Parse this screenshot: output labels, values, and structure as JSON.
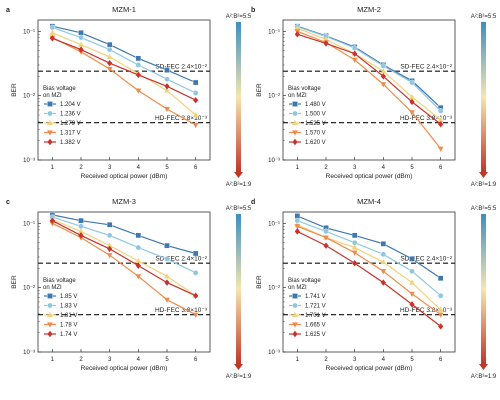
{
  "colorbar": {
    "top_label": "A²:B²=5:5",
    "bottom_label": "A²:B²=1:9",
    "top_color": "#3b8fc0",
    "bottom_color": "#c0372a"
  },
  "legend_title_line1": "Bias voltage",
  "legend_title_line2": "on MZI",
  "series_colors": [
    "#3f78b0",
    "#8fc7e0",
    "#f3d27c",
    "#ef8c4a",
    "#c8332c"
  ],
  "chart_data": [
    {
      "type": "line",
      "panel_label": "a",
      "title": "MZM-1",
      "xlabel": "Received optical power (dBm)",
      "ylabel": "BER",
      "x": [
        1,
        2,
        3,
        4,
        5,
        6
      ],
      "xlim": [
        0.5,
        6.5
      ],
      "yscale": "log",
      "ylim": [
        0.001,
        0.15
      ],
      "ytick_labels": [
        "10⁻¹",
        "10⁻²",
        "10⁻³"
      ],
      "thresholds": [
        {
          "label": "SD-FEC 2.4×10⁻²",
          "value": 0.024
        },
        {
          "label": "HD-FEC 3.8×10⁻³",
          "value": 0.0038
        }
      ],
      "legend_placement": "left",
      "series": [
        {
          "name": "1.204 V",
          "values": [
            0.12,
            0.095,
            0.062,
            0.038,
            0.025,
            0.016
          ]
        },
        {
          "name": "1.236 V",
          "values": [
            0.115,
            0.08,
            0.052,
            0.03,
            0.018,
            0.011
          ]
        },
        {
          "name": "1.279 V",
          "values": [
            0.095,
            0.062,
            0.04,
            0.022,
            0.012,
            0.005
          ]
        },
        {
          "name": "1.317 V",
          "values": [
            0.08,
            0.048,
            0.026,
            0.012,
            0.0062,
            0.0035
          ]
        },
        {
          "name": "1.382 V",
          "values": [
            0.078,
            0.052,
            0.032,
            0.021,
            0.014,
            0.0085
          ]
        }
      ]
    },
    {
      "type": "line",
      "panel_label": "b",
      "title": "MZM-2",
      "xlabel": "Received optical power (dBm)",
      "ylabel": "BER",
      "x": [
        1,
        2,
        3,
        4,
        5,
        6
      ],
      "xlim": [
        0.5,
        6.5
      ],
      "yscale": "log",
      "ylim": [
        0.001,
        0.15
      ],
      "ytick_labels": [
        "10⁻¹",
        "10⁻²",
        "10⁻³"
      ],
      "thresholds": [
        {
          "label": "SD-FEC 2.4×10⁻²",
          "value": 0.024
        },
        {
          "label": "HD-FEC 3.8×10⁻³",
          "value": 0.0038
        }
      ],
      "legend_placement": "left",
      "series": [
        {
          "name": "1.480 V",
          "values": [
            0.12,
            0.085,
            0.057,
            0.03,
            0.017,
            0.0065
          ]
        },
        {
          "name": "1.500 V",
          "values": [
            0.118,
            0.083,
            0.055,
            0.029,
            0.016,
            0.0058
          ]
        },
        {
          "name": "1.525 V",
          "values": [
            0.112,
            0.075,
            0.045,
            0.024,
            0.0095,
            0.0042
          ]
        },
        {
          "name": "1.570 V",
          "values": [
            0.1,
            0.067,
            0.036,
            0.015,
            0.0055,
            0.0015
          ]
        },
        {
          "name": "1.620 V",
          "values": [
            0.09,
            0.065,
            0.045,
            0.02,
            0.008,
            0.0036
          ]
        }
      ]
    },
    {
      "type": "line",
      "panel_label": "c",
      "title": "MZM-3",
      "xlabel": "Received optical power (dBm)",
      "ylabel": "BER",
      "x": [
        1,
        2,
        3,
        4,
        5,
        6
      ],
      "xlim": [
        0.5,
        6.5
      ],
      "yscale": "log",
      "ylim": [
        0.001,
        0.15
      ],
      "ytick_labels": [
        "10⁻¹",
        "10⁻²",
        "10⁻³"
      ],
      "thresholds": [
        {
          "label": "SD-FEC 2.4×10⁻²",
          "value": 0.024
        },
        {
          "label": "HD-FEC 3.8×10⁻³",
          "value": 0.0038
        }
      ],
      "legend_placement": "left",
      "series": [
        {
          "name": "1.85 V",
          "values": [
            0.135,
            0.11,
            0.095,
            0.065,
            0.045,
            0.034
          ]
        },
        {
          "name": "1.83 V",
          "values": [
            0.125,
            0.09,
            0.065,
            0.042,
            0.028,
            0.017
          ]
        },
        {
          "name": "1.81 V",
          "values": [
            0.115,
            0.075,
            0.045,
            0.026,
            0.015,
            0.0075
          ]
        },
        {
          "name": "1.78 V",
          "values": [
            0.1,
            0.06,
            0.032,
            0.015,
            0.0065,
            0.0038
          ]
        },
        {
          "name": "1.74 V",
          "values": [
            0.11,
            0.065,
            0.04,
            0.022,
            0.012,
            0.0075
          ]
        }
      ]
    },
    {
      "type": "line",
      "panel_label": "d",
      "title": "MZM-4",
      "xlabel": "Received optical power (dBm)",
      "ylabel": "BER",
      "x": [
        1,
        2,
        3,
        4,
        5,
        6
      ],
      "xlim": [
        0.5,
        6.5
      ],
      "yscale": "log",
      "ylim": [
        0.001,
        0.15
      ],
      "ytick_labels": [
        "10⁻¹",
        "10⁻²",
        "10⁻³"
      ],
      "thresholds": [
        {
          "label": "SD-FEC 2.4×10⁻²",
          "value": 0.024
        },
        {
          "label": "HD-FEC 3.8×10⁻³",
          "value": 0.0038
        }
      ],
      "legend_placement": "left",
      "series": [
        {
          "name": "1.741 V",
          "values": [
            0.13,
            0.085,
            0.065,
            0.048,
            0.028,
            0.014
          ]
        },
        {
          "name": "1.721 V",
          "values": [
            0.11,
            0.075,
            0.05,
            0.033,
            0.018,
            0.0075
          ]
        },
        {
          "name": "1.701 V",
          "values": [
            0.095,
            0.06,
            0.042,
            0.025,
            0.012,
            0.0045
          ]
        },
        {
          "name": "1.665 V",
          "values": [
            0.09,
            0.06,
            0.035,
            0.018,
            0.008,
            0.0038
          ]
        },
        {
          "name": "1.625 V",
          "values": [
            0.075,
            0.045,
            0.024,
            0.012,
            0.0055,
            0.0025
          ]
        }
      ]
    }
  ]
}
